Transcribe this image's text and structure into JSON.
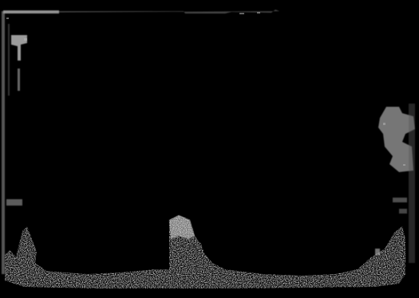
{
  "screen": {
    "background": "#000000",
    "foreground": "#c8c8c8",
    "text": []
  }
}
